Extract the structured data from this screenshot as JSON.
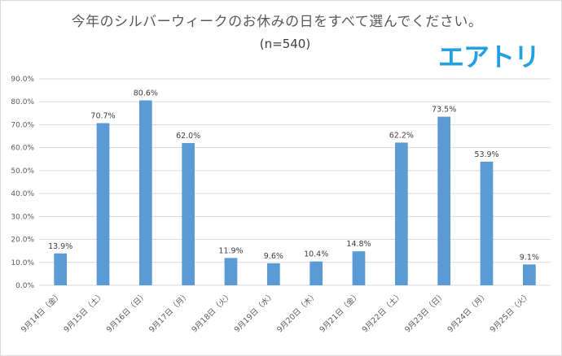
{
  "chart_data": {
    "type": "bar",
    "title": "今年のシルバーウィークのお休みの日をすべて選んでください。",
    "subtitle": "(n=540)",
    "logo": "エアトリ",
    "categories": [
      "9月14日（金）",
      "9月15日（土）",
      "9月16日（日）",
      "9月17日（月）",
      "9月18日（火）",
      "9月19日（水）",
      "9月20日（木）",
      "9月21日（金）",
      "9月22日（土）",
      "9月23日（日）",
      "9月24日（月）",
      "9月25日（火）"
    ],
    "values": [
      13.9,
      70.7,
      80.6,
      62.0,
      11.9,
      9.6,
      10.4,
      14.8,
      62.2,
      73.5,
      53.9,
      9.1
    ],
    "value_labels": [
      "13.9%",
      "70.7%",
      "80.6%",
      "62.0%",
      "11.9%",
      "9.6%",
      "10.4%",
      "14.8%",
      "62.2%",
      "73.5%",
      "53.9%",
      "9.1%"
    ],
    "ylim": [
      0,
      90
    ],
    "yticks": [
      0,
      10,
      20,
      30,
      40,
      50,
      60,
      70,
      80,
      90
    ],
    "ytick_labels": [
      "0.0%",
      "10.0%",
      "20.0%",
      "30.0%",
      "40.0%",
      "50.0%",
      "60.0%",
      "70.0%",
      "80.0%",
      "90.0%"
    ],
    "xlabel": "",
    "ylabel": "",
    "grid": true,
    "bar_color": "#5b9bd5",
    "grid_color": "#d9d9d9",
    "logo_color": "#22a0df"
  }
}
